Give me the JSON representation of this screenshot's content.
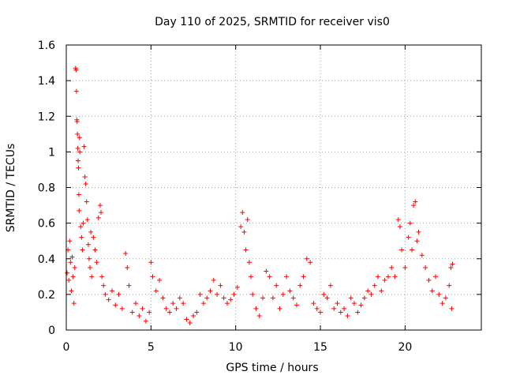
{
  "chart_data": {
    "type": "scatter",
    "title": "Day 110 of 2025, SRMTID for receiver vis0",
    "xlabel": "GPS time / hours",
    "ylabel": "SRMTID / TECUs",
    "xlim": [
      0,
      24.5
    ],
    "ylim": [
      0,
      1.6
    ],
    "x_ticks": [
      0,
      5,
      10,
      15,
      20
    ],
    "y_ticks": [
      0,
      0.2,
      0.4,
      0.6,
      0.8,
      1,
      1.2,
      1.4,
      1.6
    ],
    "x_tick_labels": [
      "0",
      "5",
      "10",
      "15",
      "20"
    ],
    "y_tick_labels": [
      "0",
      "0.2",
      "0.4",
      "0.6",
      "0.8",
      "1",
      "1.2",
      "1.4",
      "1.6"
    ],
    "grid": true,
    "marker": "+",
    "color": "#ff0000",
    "x_range_observed": [
      0,
      22.8
    ],
    "series": [
      {
        "name": "vis0",
        "points": [
          [
            0.05,
            0.32
          ],
          [
            0.1,
            0.45
          ],
          [
            0.15,
            0.28
          ],
          [
            0.2,
            0.5
          ],
          [
            0.25,
            0.38
          ],
          [
            0.3,
            0.22
          ],
          [
            0.35,
            0.41
          ],
          [
            0.4,
            0.3
          ],
          [
            0.45,
            0.15
          ],
          [
            0.5,
            0.35
          ],
          [
            0.55,
            1.47
          ],
          [
            0.58,
            1.46
          ],
          [
            0.6,
            1.34
          ],
          [
            0.62,
            1.18
          ],
          [
            0.64,
            1.17
          ],
          [
            0.66,
            1.1
          ],
          [
            0.68,
            1.02
          ],
          [
            0.7,
            0.95
          ],
          [
            0.72,
            0.91
          ],
          [
            0.74,
            0.76
          ],
          [
            0.76,
            0.67
          ],
          [
            0.78,
            1.08
          ],
          [
            0.8,
            1.0
          ],
          [
            0.85,
            0.58
          ],
          [
            0.9,
            0.52
          ],
          [
            0.95,
            0.45
          ],
          [
            1.0,
            0.6
          ],
          [
            1.05,
            1.03
          ],
          [
            1.1,
            0.86
          ],
          [
            1.15,
            0.82
          ],
          [
            1.2,
            0.72
          ],
          [
            1.25,
            0.62
          ],
          [
            1.3,
            0.48
          ],
          [
            1.35,
            0.4
          ],
          [
            1.4,
            0.35
          ],
          [
            1.45,
            0.55
          ],
          [
            1.5,
            0.3
          ],
          [
            1.6,
            0.52
          ],
          [
            1.7,
            0.45
          ],
          [
            1.8,
            0.38
          ],
          [
            1.9,
            0.63
          ],
          [
            2.0,
            0.7
          ],
          [
            2.05,
            0.66
          ],
          [
            2.1,
            0.3
          ],
          [
            2.2,
            0.25
          ],
          [
            2.3,
            0.2
          ],
          [
            2.5,
            0.17
          ],
          [
            2.7,
            0.22
          ],
          [
            2.9,
            0.14
          ],
          [
            3.1,
            0.2
          ],
          [
            3.3,
            0.12
          ],
          [
            3.5,
            0.43
          ],
          [
            3.6,
            0.35
          ],
          [
            3.7,
            0.25
          ],
          [
            3.9,
            0.1
          ],
          [
            4.1,
            0.15
          ],
          [
            4.3,
            0.08
          ],
          [
            4.5,
            0.12
          ],
          [
            4.7,
            0.05
          ],
          [
            4.9,
            0.1
          ],
          [
            5.0,
            0.38
          ],
          [
            5.1,
            0.3
          ],
          [
            5.3,
            0.22
          ],
          [
            5.5,
            0.28
          ],
          [
            5.7,
            0.18
          ],
          [
            5.9,
            0.12
          ],
          [
            6.1,
            0.1
          ],
          [
            6.3,
            0.15
          ],
          [
            6.5,
            0.12
          ],
          [
            6.7,
            0.18
          ],
          [
            6.9,
            0.15
          ],
          [
            7.1,
            0.06
          ],
          [
            7.3,
            0.04
          ],
          [
            7.5,
            0.08
          ],
          [
            7.7,
            0.1
          ],
          [
            7.9,
            0.2
          ],
          [
            8.1,
            0.15
          ],
          [
            8.3,
            0.18
          ],
          [
            8.5,
            0.22
          ],
          [
            8.7,
            0.28
          ],
          [
            8.9,
            0.2
          ],
          [
            9.1,
            0.25
          ],
          [
            9.3,
            0.18
          ],
          [
            9.5,
            0.15
          ],
          [
            9.7,
            0.17
          ],
          [
            9.9,
            0.2
          ],
          [
            10.1,
            0.24
          ],
          [
            10.3,
            0.58
          ],
          [
            10.4,
            0.66
          ],
          [
            10.5,
            0.55
          ],
          [
            10.6,
            0.45
          ],
          [
            10.7,
            0.62
          ],
          [
            10.8,
            0.38
          ],
          [
            10.9,
            0.3
          ],
          [
            11.0,
            0.2
          ],
          [
            11.2,
            0.12
          ],
          [
            11.4,
            0.08
          ],
          [
            11.6,
            0.18
          ],
          [
            11.8,
            0.33
          ],
          [
            12.0,
            0.3
          ],
          [
            12.2,
            0.18
          ],
          [
            12.4,
            0.25
          ],
          [
            12.6,
            0.12
          ],
          [
            12.8,
            0.2
          ],
          [
            13.0,
            0.3
          ],
          [
            13.2,
            0.22
          ],
          [
            13.4,
            0.18
          ],
          [
            13.6,
            0.14
          ],
          [
            13.8,
            0.25
          ],
          [
            14.0,
            0.3
          ],
          [
            14.2,
            0.4
          ],
          [
            14.4,
            0.38
          ],
          [
            14.6,
            0.15
          ],
          [
            14.8,
            0.12
          ],
          [
            15.0,
            0.1
          ],
          [
            15.2,
            0.2
          ],
          [
            15.4,
            0.18
          ],
          [
            15.6,
            0.25
          ],
          [
            15.8,
            0.12
          ],
          [
            16.0,
            0.15
          ],
          [
            16.2,
            0.1
          ],
          [
            16.4,
            0.12
          ],
          [
            16.6,
            0.08
          ],
          [
            16.8,
            0.18
          ],
          [
            17.0,
            0.15
          ],
          [
            17.2,
            0.1
          ],
          [
            17.4,
            0.14
          ],
          [
            17.6,
            0.18
          ],
          [
            17.8,
            0.22
          ],
          [
            18.0,
            0.2
          ],
          [
            18.2,
            0.25
          ],
          [
            18.4,
            0.3
          ],
          [
            18.6,
            0.22
          ],
          [
            18.8,
            0.28
          ],
          [
            19.0,
            0.3
          ],
          [
            19.2,
            0.35
          ],
          [
            19.4,
            0.3
          ],
          [
            19.6,
            0.62
          ],
          [
            19.7,
            0.58
          ],
          [
            19.8,
            0.45
          ],
          [
            20.0,
            0.35
          ],
          [
            20.2,
            0.52
          ],
          [
            20.3,
            0.6
          ],
          [
            20.4,
            0.45
          ],
          [
            20.5,
            0.7
          ],
          [
            20.6,
            0.72
          ],
          [
            20.7,
            0.5
          ],
          [
            20.8,
            0.55
          ],
          [
            21.0,
            0.42
          ],
          [
            21.2,
            0.35
          ],
          [
            21.4,
            0.28
          ],
          [
            21.6,
            0.22
          ],
          [
            21.8,
            0.3
          ],
          [
            22.0,
            0.2
          ],
          [
            22.2,
            0.15
          ],
          [
            22.4,
            0.18
          ],
          [
            22.6,
            0.25
          ],
          [
            22.7,
            0.35
          ],
          [
            22.8,
            0.37
          ],
          [
            22.75,
            0.12
          ]
        ]
      }
    ]
  }
}
